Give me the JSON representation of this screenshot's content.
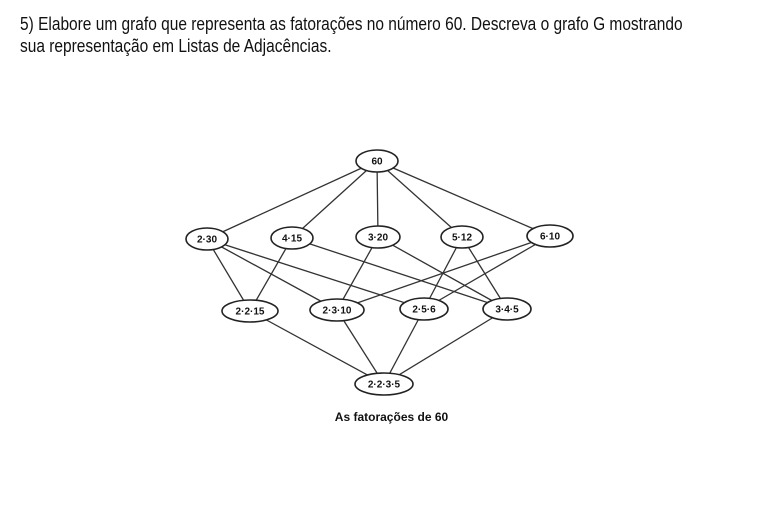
{
  "question": {
    "line1": "5) Elabore um grafo que representa as fatorações no número 60. Descreva o grafo G mostrando",
    "line2": "sua representação em Listas de Adjacências."
  },
  "graph": {
    "nodes": [
      {
        "id": "n60",
        "label": "60"
      },
      {
        "id": "n2_30",
        "label": "2·30"
      },
      {
        "id": "n4_15",
        "label": "4·15"
      },
      {
        "id": "n3_20",
        "label": "3·20"
      },
      {
        "id": "n5_12",
        "label": "5·12"
      },
      {
        "id": "n6_10",
        "label": "6·10"
      },
      {
        "id": "n2_2_15",
        "label": "2·2·15"
      },
      {
        "id": "n2_3_10",
        "label": "2·3·10"
      },
      {
        "id": "n2_5_6",
        "label": "2·5·6"
      },
      {
        "id": "n3_4_5",
        "label": "3·4·5"
      },
      {
        "id": "n2_2_3_5",
        "label": "2·2·3·5"
      }
    ],
    "edges": [
      [
        "n60",
        "n2_30"
      ],
      [
        "n60",
        "n4_15"
      ],
      [
        "n60",
        "n3_20"
      ],
      [
        "n60",
        "n5_12"
      ],
      [
        "n60",
        "n6_10"
      ],
      [
        "n2_30",
        "n2_2_15"
      ],
      [
        "n2_30",
        "n2_3_10"
      ],
      [
        "n2_30",
        "n2_5_6"
      ],
      [
        "n4_15",
        "n2_2_15"
      ],
      [
        "n4_15",
        "n3_4_5"
      ],
      [
        "n3_20",
        "n2_3_10"
      ],
      [
        "n3_20",
        "n3_4_5"
      ],
      [
        "n5_12",
        "n2_5_6"
      ],
      [
        "n5_12",
        "n3_4_5"
      ],
      [
        "n6_10",
        "n2_3_10"
      ],
      [
        "n6_10",
        "n2_5_6"
      ],
      [
        "n2_2_15",
        "n2_2_3_5"
      ],
      [
        "n2_3_10",
        "n2_2_3_5"
      ],
      [
        "n2_5_6",
        "n2_2_3_5"
      ],
      [
        "n3_4_5",
        "n2_2_3_5"
      ]
    ],
    "caption": "As fatorações de 60"
  }
}
